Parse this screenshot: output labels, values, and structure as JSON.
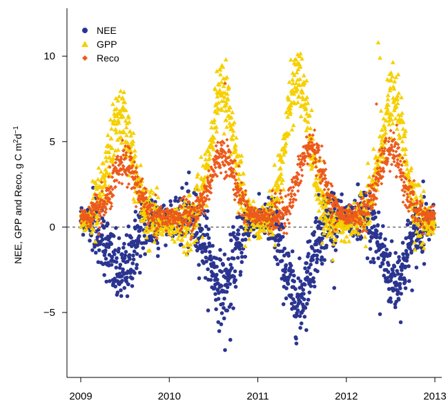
{
  "chart_data": {
    "type": "scatter",
    "title": "",
    "xlabel": "",
    "ylabel": "NEE, GPP and Reco, g C m",
    "ylabel_sup1": "2",
    "ylabel_mid": "d",
    "ylabel_sup2": "−1",
    "xlim": [
      2009.0,
      2013.0
    ],
    "ylim": [
      -8.8,
      12.8
    ],
    "x_ticks": [
      2009,
      2010,
      2011,
      2012,
      2013
    ],
    "x_tick_labels": [
      "2009",
      "2010",
      "2011",
      "2012",
      "2013"
    ],
    "y_ticks": [
      -5,
      0,
      5,
      10
    ],
    "y_tick_labels": [
      "−5",
      "0",
      "5",
      "10"
    ],
    "reference_line": {
      "y": 0,
      "style": "dashed"
    },
    "grid": false,
    "legend_position": "top-left",
    "series": [
      {
        "name": "NEE",
        "marker": "circle",
        "color": "#2b3590",
        "seasonal_profile": {
          "years": [
            2009,
            2010,
            2011,
            2012
          ],
          "winter_value": 0.5,
          "summer_min": [
            -2.8,
            -3.6,
            -4.3,
            -3.1
          ],
          "summer_peak_time": [
            0.45,
            0.6,
            0.45,
            0.55
          ],
          "noise": 1.0,
          "outliers": [
            [
              2010.63,
              -7.2
            ],
            [
              2010.69,
              -6.6
            ],
            [
              2011.48,
              -5.9
            ],
            [
              2012.38,
              -5.1
            ]
          ]
        }
      },
      {
        "name": "GPP",
        "marker": "triangle",
        "color": "#f6d000",
        "seasonal_profile": {
          "years": [
            2009,
            2010,
            2011,
            2012
          ],
          "winter_value": 0.2,
          "summer_max": [
            6.4,
            7.9,
            8.6,
            7.4
          ],
          "summer_peak_time": [
            0.45,
            0.6,
            0.45,
            0.52
          ],
          "noise": 0.9,
          "outliers": [
            [
              2009.42,
              7.4
            ],
            [
              2010.64,
              9.8
            ],
            [
              2011.45,
              10.1
            ],
            [
              2011.47,
              10.0
            ],
            [
              2012.36,
              10.8
            ],
            [
              2012.38,
              9.9
            ]
          ]
        }
      },
      {
        "name": "Reco",
        "marker": "diamond",
        "color": "#ec5a1c",
        "seasonal_profile": {
          "years": [
            2009,
            2010,
            2011,
            2012
          ],
          "winter_value": 0.6,
          "summer_max": [
            3.7,
            4.3,
            4.7,
            4.5
          ],
          "summer_peak_time": [
            0.5,
            0.6,
            0.6,
            0.5
          ],
          "noise": 0.55,
          "outliers": [
            [
              2010.63,
              8.4
            ],
            [
              2012.34,
              7.2
            ]
          ]
        }
      }
    ]
  }
}
